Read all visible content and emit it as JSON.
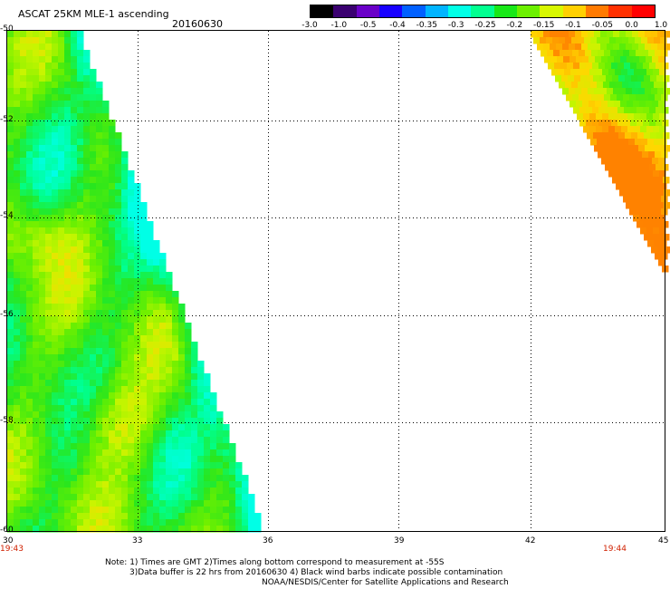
{
  "header": {
    "title": "ASCAT 25KM MLE-1 ascending",
    "date": "20160630"
  },
  "colorbar": {
    "labels": [
      "-3.0",
      "-1.0",
      "-0.5",
      "-0.4",
      "-0.35",
      "-0.3",
      "-0.25",
      "-0.2",
      "-0.15",
      "-0.1",
      "-0.05",
      "0.0",
      "1.0"
    ],
    "colors": [
      "#000000",
      "#3a0070",
      "#6a00c8",
      "#1800ff",
      "#0060ff",
      "#00b4ff",
      "#00ffe6",
      "#00ff90",
      "#18e818",
      "#6cf000",
      "#d8f800",
      "#ffd000",
      "#ff7a00",
      "#ff3000",
      "#ff0000"
    ]
  },
  "axes": {
    "y_labels": [
      "-50",
      "-52",
      "-54",
      "-56",
      "-58",
      "-60"
    ],
    "x_labels": [
      "30",
      "33",
      "36",
      "39",
      "42",
      "45"
    ]
  },
  "times": {
    "left": "19:43",
    "right": "19:44"
  },
  "notes": {
    "line1": "Note: 1) Times are GMT 2)Times along bottom correspond to measurement at -55S",
    "line2": "3)Data buffer is 22 hrs from 20160630 4) Black wind barbs indicate possible contamination",
    "line3": "NOAA/NESDIS/Center for Satellite Applications and Research"
  }
}
